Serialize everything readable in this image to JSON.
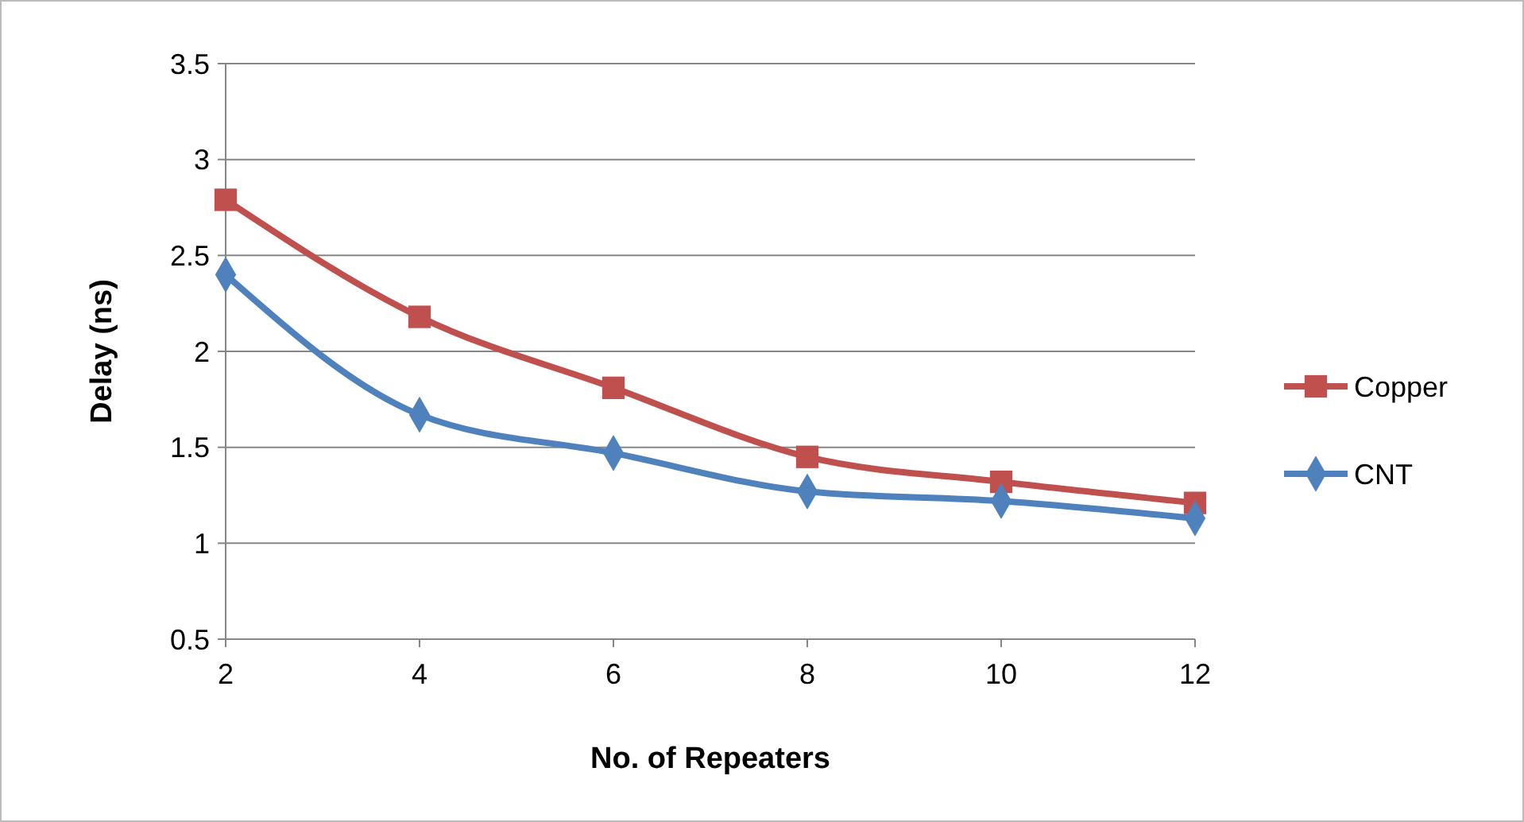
{
  "chart_data": {
    "type": "line",
    "xlabel": "No. of Repeaters",
    "ylabel": "Delay (ns)",
    "x": [
      2,
      4,
      6,
      8,
      10,
      12
    ],
    "xlim": [
      2,
      12
    ],
    "xticks": [
      2,
      4,
      6,
      8,
      10,
      12
    ],
    "ylim": [
      0.5,
      3.5
    ],
    "yticks": [
      0.5,
      1,
      1.5,
      2,
      2.5,
      3,
      3.5
    ],
    "grid": "y",
    "legend": "right",
    "series": [
      {
        "name": "Copper",
        "color": "#c0504d",
        "marker": "square",
        "values": [
          2.79,
          2.18,
          1.81,
          1.45,
          1.32,
          1.21
        ]
      },
      {
        "name": "CNT",
        "color": "#4f81bd",
        "marker": "diamond",
        "values": [
          2.4,
          1.67,
          1.47,
          1.27,
          1.22,
          1.13
        ]
      }
    ]
  }
}
